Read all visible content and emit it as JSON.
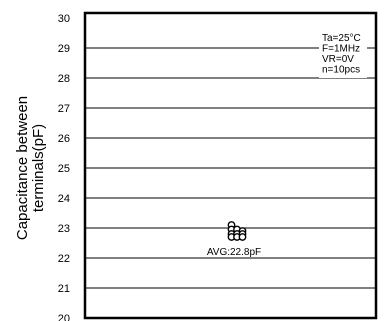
{
  "chart_data": {
    "type": "scatter",
    "title": "",
    "xlabel": "",
    "ylabel_line1": "Capacitance between",
    "ylabel_line2": "terminals(pF)",
    "ylim": [
      20,
      30
    ],
    "yticks": [
      "30",
      "29",
      "28",
      "27",
      "26",
      "25",
      "24",
      "23",
      "22",
      "21",
      "20"
    ],
    "grid": true,
    "conditions": [
      "Ta=25°C",
      "F=1MHz",
      "VR=0V",
      "n=10pcs"
    ],
    "points": [
      {
        "x": 1,
        "y": 23.1
      },
      {
        "x": 1,
        "y": 22.95
      },
      {
        "x": 1,
        "y": 22.8
      },
      {
        "x": 1,
        "y": 22.7
      },
      {
        "x": 2,
        "y": 22.95
      },
      {
        "x": 2,
        "y": 22.8
      },
      {
        "x": 2,
        "y": 22.7
      },
      {
        "x": 3,
        "y": 22.9
      },
      {
        "x": 3,
        "y": 22.8
      },
      {
        "x": 3,
        "y": 22.7
      }
    ],
    "annotation": "AVG:22.8pF",
    "average": 22.8
  }
}
